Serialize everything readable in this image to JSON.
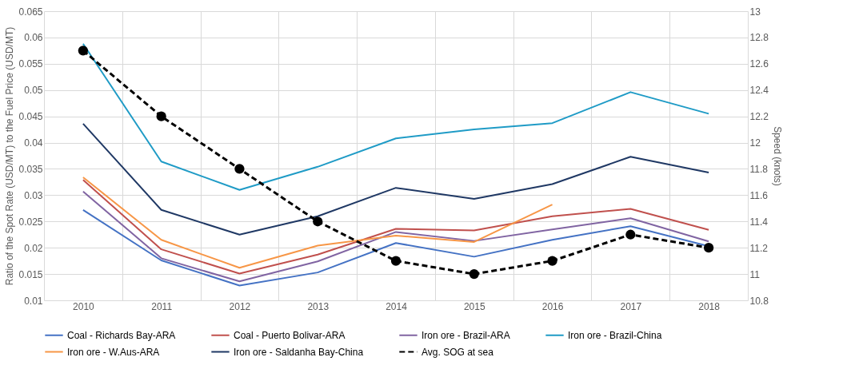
{
  "chart_data": {
    "type": "line",
    "categories": [
      "2010",
      "2011",
      "2012",
      "2013",
      "2014",
      "2015",
      "2016",
      "2017",
      "2018"
    ],
    "ylabel": "Ratio of the Spot Rate (USD/MT) to the Fuel Price (USD/MT)",
    "y2label": "Speed (knots)",
    "ylim": [
      0.01,
      0.065
    ],
    "yticks": [
      0.01,
      0.015,
      0.02,
      0.025,
      0.03,
      0.035,
      0.04,
      0.045,
      0.05,
      0.055,
      0.06,
      0.065
    ],
    "y2lim": [
      10.8,
      13
    ],
    "y2ticks": [
      10.8,
      11,
      11.2,
      11.4,
      11.6,
      11.8,
      12,
      12.2,
      12.4,
      12.6,
      12.8,
      13
    ],
    "grid": true,
    "legend": "bottom",
    "series": [
      {
        "name": "Coal - Richards Bay-ARA",
        "color": "#4472c4",
        "values": [
          0.0272,
          0.0176,
          0.0128,
          0.0153,
          0.0209,
          0.0183,
          0.0215,
          0.0241,
          0.0203
        ]
      },
      {
        "name": "Coal - Puerto Bolivar-ARA",
        "color": "#c0504d",
        "values": [
          0.0329,
          0.0197,
          0.0151,
          0.0187,
          0.0236,
          0.0233,
          0.026,
          0.0274,
          0.0234
        ]
      },
      {
        "name": "Iron ore - Brazil-ARA",
        "color": "#8064a2",
        "values": [
          0.0307,
          0.018,
          0.0136,
          0.0174,
          0.023,
          0.0213,
          0.0235,
          0.0256,
          0.0212
        ]
      },
      {
        "name": "Iron ore - Brazil-China",
        "color": "#1f9bc6",
        "values": [
          0.0588,
          0.0364,
          0.031,
          0.0354,
          0.0408,
          0.0425,
          0.0437,
          0.0496,
          0.0455
        ]
      },
      {
        "name": "Iron ore - W.Aus-ARA",
        "color": "#f79646",
        "values": [
          0.0334,
          0.0215,
          0.0162,
          0.0204,
          0.0223,
          0.0211,
          0.0282,
          null,
          null
        ]
      },
      {
        "name": "Iron ore - Saldanha Bay-China",
        "color": "#1f3864",
        "values": [
          0.0436,
          0.0272,
          0.0225,
          0.026,
          0.0314,
          0.0293,
          0.0321,
          0.0373,
          0.0343
        ]
      },
      {
        "name": "Avg. SOG at sea",
        "color": "#000000",
        "axis": "y2",
        "line_style": "dashed",
        "marker": "circle",
        "values": [
          12.7,
          12.2,
          11.8,
          11.4,
          11.1,
          11.0,
          11.1,
          11.3,
          11.2
        ]
      }
    ]
  }
}
